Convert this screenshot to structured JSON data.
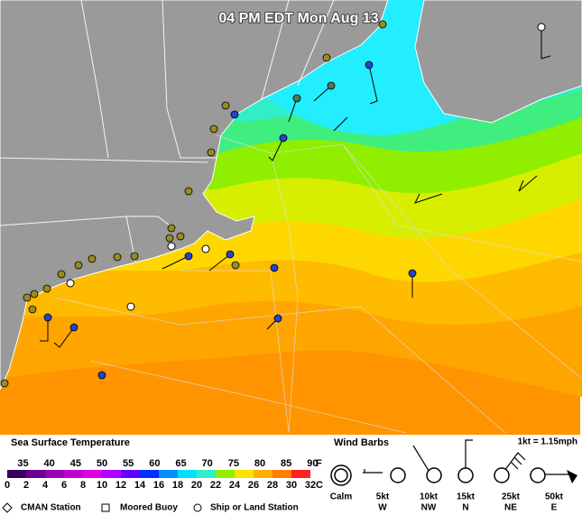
{
  "header": {
    "title": "04 PM EDT Mon Aug 13"
  },
  "sst_legend": {
    "title": "Sea Surface Temperature",
    "fahrenheit": {
      "ticks": [
        35,
        40,
        45,
        50,
        55,
        60,
        65,
        70,
        75,
        80,
        85,
        90
      ],
      "unit": "F"
    },
    "celsius": {
      "ticks": [
        0,
        2,
        4,
        6,
        8,
        10,
        12,
        14,
        16,
        18,
        20,
        22,
        24,
        26,
        28,
        30,
        32
      ],
      "unit": "C"
    }
  },
  "wind_legend": {
    "title": "Wind Barbs",
    "conversion": "1kt = 1.15mph",
    "barbs": [
      {
        "speed": "Calm",
        "direction": ""
      },
      {
        "speed": "5kt",
        "direction": "W"
      },
      {
        "speed": "10kt",
        "direction": "NW"
      },
      {
        "speed": "15kt",
        "direction": "N"
      },
      {
        "speed": "25kt",
        "direction": "NE"
      },
      {
        "speed": "50kt",
        "direction": "E"
      }
    ]
  },
  "station_legend": [
    "CMAN Station",
    "Moored Buoy",
    "Ship or Land Station"
  ]
}
